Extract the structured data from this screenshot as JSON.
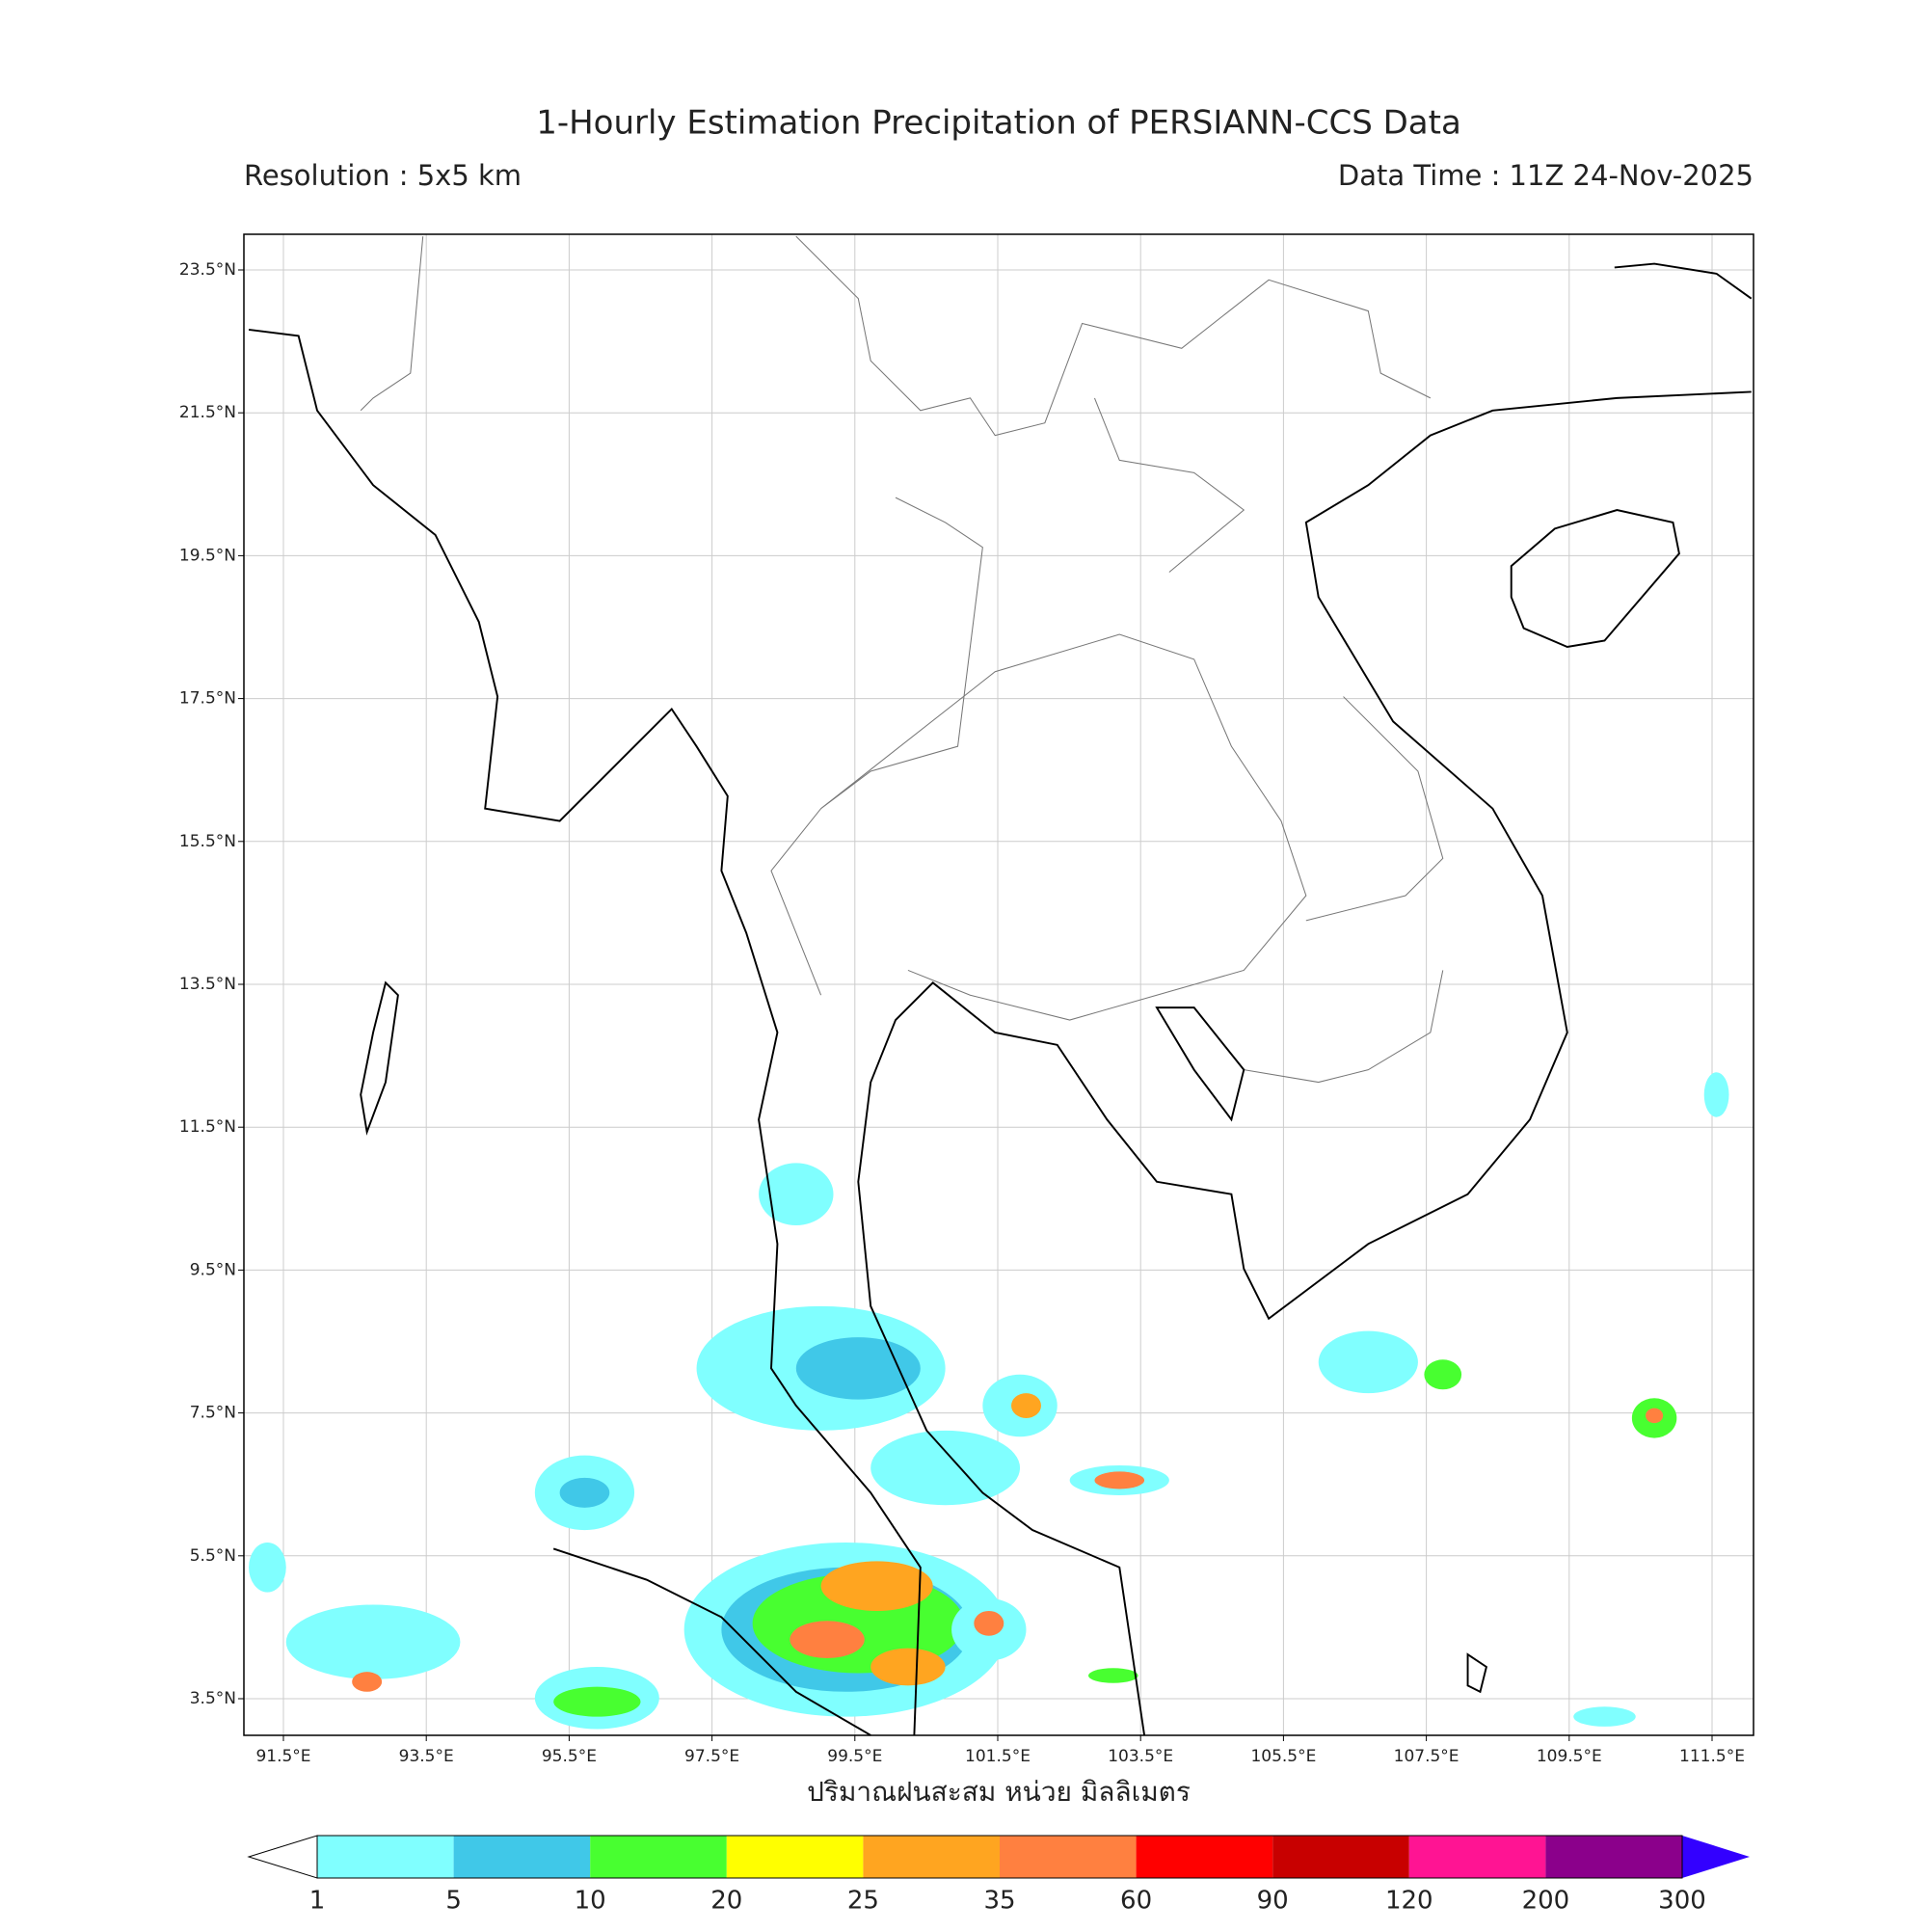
{
  "header": {
    "title": "1-Hourly Estimation Precipitation of PERSIANN-CCS Data",
    "resolution": "Resolution : 5x5 km",
    "data_time": "Data Time : 11Z 24-Nov-2025"
  },
  "map": {
    "lat_ticks": [
      "23.5°N",
      "21.5°N",
      "19.5°N",
      "17.5°N",
      "15.5°N",
      "13.5°N",
      "11.5°N",
      "9.5°N",
      "7.5°N",
      "5.5°N",
      "3.5°N"
    ],
    "lon_ticks": [
      "91.5°E",
      "93.5°E",
      "95.5°E",
      "97.5°E",
      "99.5°E",
      "101.5°E",
      "103.5°E",
      "105.5°E",
      "107.5°E",
      "109.5°E",
      "111.5°E"
    ],
    "x_label": "ปริมาณฝนสะสม หน่วย มิลลิเมตร"
  },
  "colorbar": {
    "levels": [
      "1",
      "5",
      "10",
      "20",
      "25",
      "35",
      "60",
      "90",
      "120",
      "200",
      "300"
    ],
    "colors": [
      "#80ffff",
      "#40c8e8",
      "#48ff30",
      "#ffff00",
      "#ffa520",
      "#ff8040",
      "#ff0000",
      "#c80000",
      "#ff1493",
      "#8b008b"
    ],
    "under_color": "#ffffff",
    "over_color": "#3300ff"
  }
}
